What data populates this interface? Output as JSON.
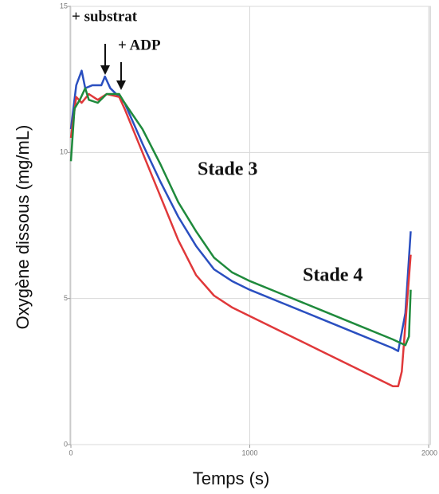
{
  "chart_data": {
    "type": "line",
    "x_label": "Temps (s)",
    "y_label": "Oxygène dissous (mg/mL)",
    "annotations": [
      "+ substrat",
      "+ ADP",
      "Stade 3",
      "Stade 4"
    ],
    "xlim": [
      0,
      2000
    ],
    "ylim": [
      0,
      15
    ],
    "xticks": [
      0,
      1000,
      2000
    ],
    "yticks": [
      0,
      5,
      10,
      15
    ],
    "grid": true,
    "series": [
      {
        "name": "Bleu",
        "color": "#2a4fc0",
        "x": [
          0,
          30,
          60,
          80,
          120,
          170,
          190,
          220,
          270,
          300,
          400,
          500,
          600,
          700,
          800,
          900,
          1000,
          1200,
          1400,
          1600,
          1800,
          1830,
          1870,
          1900
        ],
        "values": [
          10.8,
          12.3,
          12.8,
          12.2,
          12.3,
          12.3,
          12.6,
          12.2,
          11.9,
          11.7,
          10.3,
          9.0,
          7.8,
          6.8,
          6.0,
          5.6,
          5.3,
          4.8,
          4.3,
          3.8,
          3.3,
          3.2,
          4.5,
          7.3
        ]
      },
      {
        "name": "Rouge",
        "color": "#e0383a",
        "x": [
          0,
          30,
          60,
          100,
          150,
          200,
          270,
          300,
          400,
          500,
          600,
          700,
          800,
          900,
          1000,
          1200,
          1400,
          1600,
          1800,
          1830,
          1850,
          1900
        ],
        "values": [
          10.5,
          11.9,
          11.7,
          12.0,
          11.8,
          12.0,
          11.9,
          11.5,
          10.0,
          8.5,
          7.0,
          5.8,
          5.1,
          4.7,
          4.4,
          3.8,
          3.2,
          2.6,
          2.0,
          2.0,
          2.5,
          6.5
        ]
      },
      {
        "name": "Vert",
        "color": "#1f8a3c",
        "x": [
          0,
          20,
          50,
          80,
          100,
          150,
          200,
          270,
          300,
          400,
          500,
          600,
          700,
          800,
          900,
          1000,
          1200,
          1400,
          1600,
          1800,
          1870,
          1890,
          1900
        ],
        "values": [
          9.7,
          11.5,
          11.8,
          12.2,
          11.8,
          11.7,
          12.0,
          12.0,
          11.7,
          10.8,
          9.6,
          8.3,
          7.3,
          6.4,
          5.9,
          5.6,
          5.1,
          4.6,
          4.1,
          3.6,
          3.4,
          3.7,
          5.3
        ]
      }
    ]
  }
}
